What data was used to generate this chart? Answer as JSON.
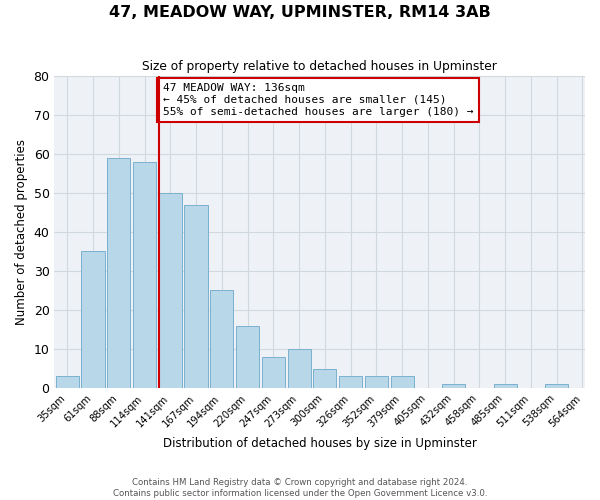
{
  "title": "47, MEADOW WAY, UPMINSTER, RM14 3AB",
  "subtitle": "Size of property relative to detached houses in Upminster",
  "xlabel": "Distribution of detached houses by size in Upminster",
  "ylabel": "Number of detached properties",
  "bar_values": [
    3,
    35,
    59,
    58,
    50,
    47,
    25,
    16,
    8,
    10,
    5,
    3,
    3,
    3,
    0,
    1,
    0,
    1,
    0,
    1
  ],
  "bin_labels": [
    "35sqm",
    "61sqm",
    "88sqm",
    "114sqm",
    "141sqm",
    "167sqm",
    "194sqm",
    "220sqm",
    "247sqm",
    "273sqm",
    "300sqm",
    "326sqm",
    "352sqm",
    "379sqm",
    "405sqm",
    "432sqm",
    "458sqm",
    "485sqm",
    "511sqm",
    "538sqm",
    "564sqm"
  ],
  "bar_color": "#b8d8ea",
  "bar_edge_color": "#7ab0ce",
  "grid_color": "#d0d8e0",
  "background_color": "#eef2f7",
  "vline_x_index": 4,
  "vline_color": "#cc0000",
  "annotation_text": "47 MEADOW WAY: 136sqm\n← 45% of detached houses are smaller (145)\n55% of semi-detached houses are larger (180) →",
  "annotation_box_color": "white",
  "annotation_box_edge_color": "#cc0000",
  "ylim": [
    0,
    80
  ],
  "yticks": [
    0,
    10,
    20,
    30,
    40,
    50,
    60,
    70,
    80
  ],
  "footer_line1": "Contains HM Land Registry data © Crown copyright and database right 2024.",
  "footer_line2": "Contains public sector information licensed under the Open Government Licence v3.0."
}
